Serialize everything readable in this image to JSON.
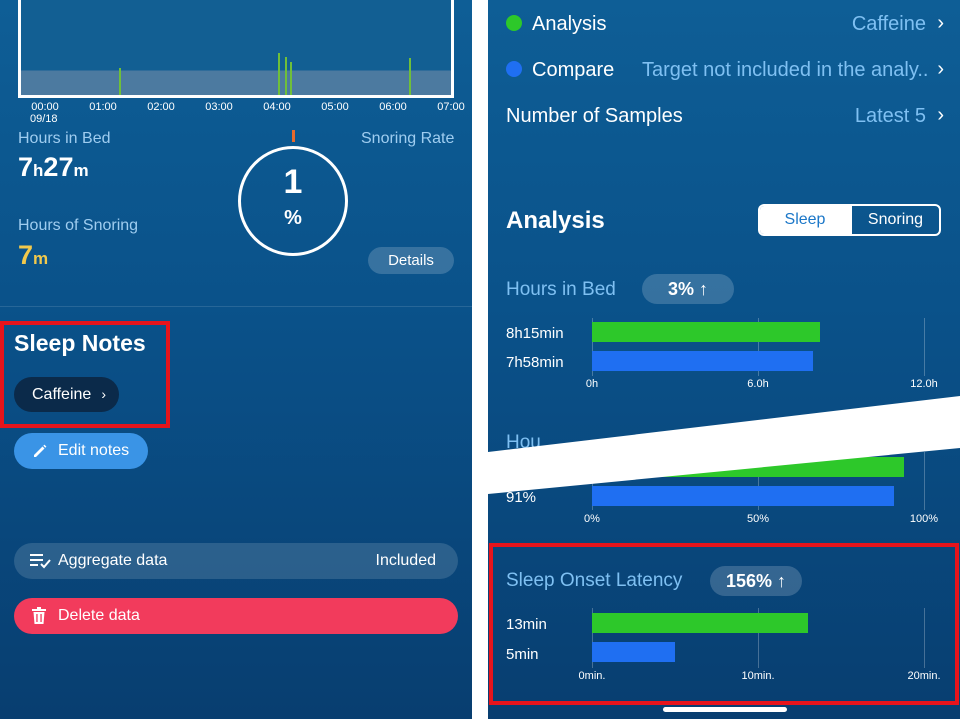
{
  "left": {
    "graph": {
      "times": [
        "00:00",
        "01:00",
        "02:00",
        "03:00",
        "04:00",
        "05:00",
        "06:00",
        "07:00"
      ],
      "date": "09/18"
    },
    "hours_in_bed": {
      "label": "Hours in Bed",
      "h": "7",
      "h_unit": "h",
      "m": "27",
      "m_unit": "m"
    },
    "snoring_rate": {
      "label": "Snoring Rate",
      "value": "1",
      "unit": "%"
    },
    "hours_of_snoring": {
      "label": "Hours of Snoring",
      "value": "7",
      "unit": "m"
    },
    "details_label": "Details",
    "sleep_notes": {
      "title": "Sleep Notes",
      "chip": "Caffeine",
      "chip_chevron": "›",
      "edit_label": "Edit notes"
    },
    "aggregate": {
      "label": "Aggregate data",
      "value": "Included"
    },
    "delete_label": "Delete data"
  },
  "right": {
    "settings": {
      "analysis": {
        "label": "Analysis",
        "value": "Caffeine",
        "color": "#2dc82a"
      },
      "compare": {
        "label": "Compare",
        "value": "Target not included in the analy...",
        "color": "#1f6ff2"
      },
      "samples": {
        "label": "Number of Samples",
        "value": "Latest 5"
      },
      "chevron": "›"
    },
    "analysis_title": "Analysis",
    "tabs": {
      "sleep": "Sleep",
      "snoring": "Snoring"
    },
    "metrics": {
      "hours_in_bed": {
        "title": "Hours in Bed",
        "badge": "3% ↑",
        "green_label": "8h15min",
        "blue_label": "7h58min",
        "green_value": 8.25,
        "blue_value": 7.97,
        "max": 12,
        "ticks": [
          "0h",
          "6.0h",
          "12.0h"
        ]
      },
      "efficiency": {
        "title_fragment": "Hou",
        "blue_label": "91%",
        "green_value": 94,
        "blue_value": 91,
        "max": 100,
        "ticks": [
          "0%",
          "50%",
          "100%"
        ]
      },
      "onset": {
        "title": "Sleep Onset Latency",
        "badge": "156% ↑",
        "green_label": "13min",
        "blue_label": "5min",
        "green_value": 13,
        "blue_value": 5,
        "max": 20,
        "ticks": [
          "0min.",
          "10min.",
          "20min."
        ]
      }
    }
  }
}
